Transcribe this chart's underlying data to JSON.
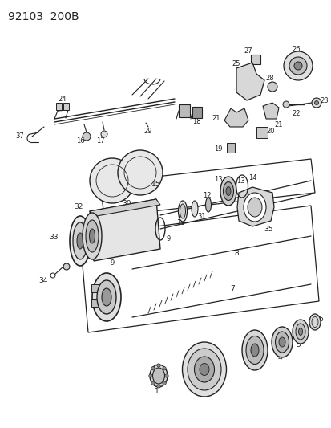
{
  "title": "92103  200B",
  "bg_color": "#ffffff",
  "fig_width": 4.14,
  "fig_height": 5.33,
  "dpi": 100,
  "line_color": "#222222"
}
